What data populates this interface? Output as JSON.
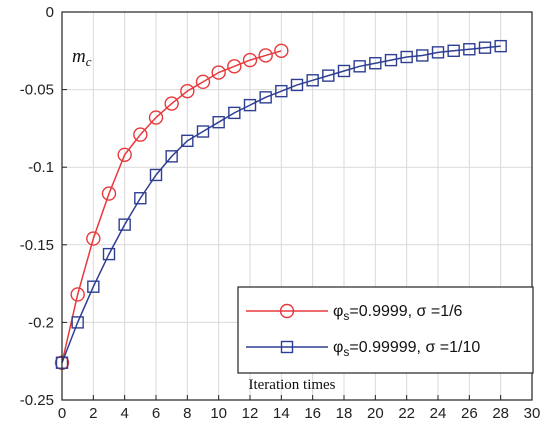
{
  "chart_data": {
    "type": "line",
    "title": "",
    "xlabel": "Iteration times",
    "ylabel_main": "m",
    "ylabel_sub": "c",
    "xlim": [
      0,
      30
    ],
    "ylim": [
      -0.25,
      0
    ],
    "xticks": [
      "0",
      "2",
      "4",
      "6",
      "8",
      "10",
      "12",
      "14",
      "16",
      "18",
      "20",
      "22",
      "24",
      "26",
      "28",
      "30"
    ],
    "yticks": [
      "0",
      "-0.05",
      "-0.1",
      "-0.15",
      "-0.2",
      "-0.25"
    ],
    "grid": true,
    "legend_position": "bottom-right",
    "series": [
      {
        "phi": "φ",
        "phi_sub": "s",
        "name_rest": "=0.9999, σ =1/6",
        "color": "#e8383b",
        "marker": "circle",
        "x": [
          0,
          1,
          2,
          3,
          4,
          5,
          6,
          7,
          8,
          9,
          10,
          11,
          12,
          13,
          14
        ],
        "y": [
          -0.226,
          -0.182,
          -0.146,
          -0.117,
          -0.092,
          -0.079,
          -0.068,
          -0.059,
          -0.051,
          -0.045,
          -0.039,
          -0.035,
          -0.031,
          -0.028,
          -0.025
        ]
      },
      {
        "phi": "φ",
        "phi_sub": "s",
        "name_rest": "=0.99999, σ =1/10",
        "color": "#2e3f93",
        "marker": "square",
        "x": [
          0,
          1,
          2,
          3,
          4,
          5,
          6,
          7,
          8,
          9,
          10,
          11,
          12,
          13,
          14,
          15,
          16,
          17,
          18,
          19,
          20,
          21,
          22,
          23,
          24,
          25,
          26,
          27,
          28
        ],
        "y": [
          -0.226,
          -0.2,
          -0.177,
          -0.156,
          -0.137,
          -0.12,
          -0.105,
          -0.093,
          -0.083,
          -0.077,
          -0.071,
          -0.065,
          -0.06,
          -0.055,
          -0.051,
          -0.047,
          -0.044,
          -0.041,
          -0.038,
          -0.035,
          -0.033,
          -0.031,
          -0.029,
          -0.028,
          -0.026,
          -0.025,
          -0.024,
          -0.023,
          -0.022
        ]
      }
    ]
  }
}
